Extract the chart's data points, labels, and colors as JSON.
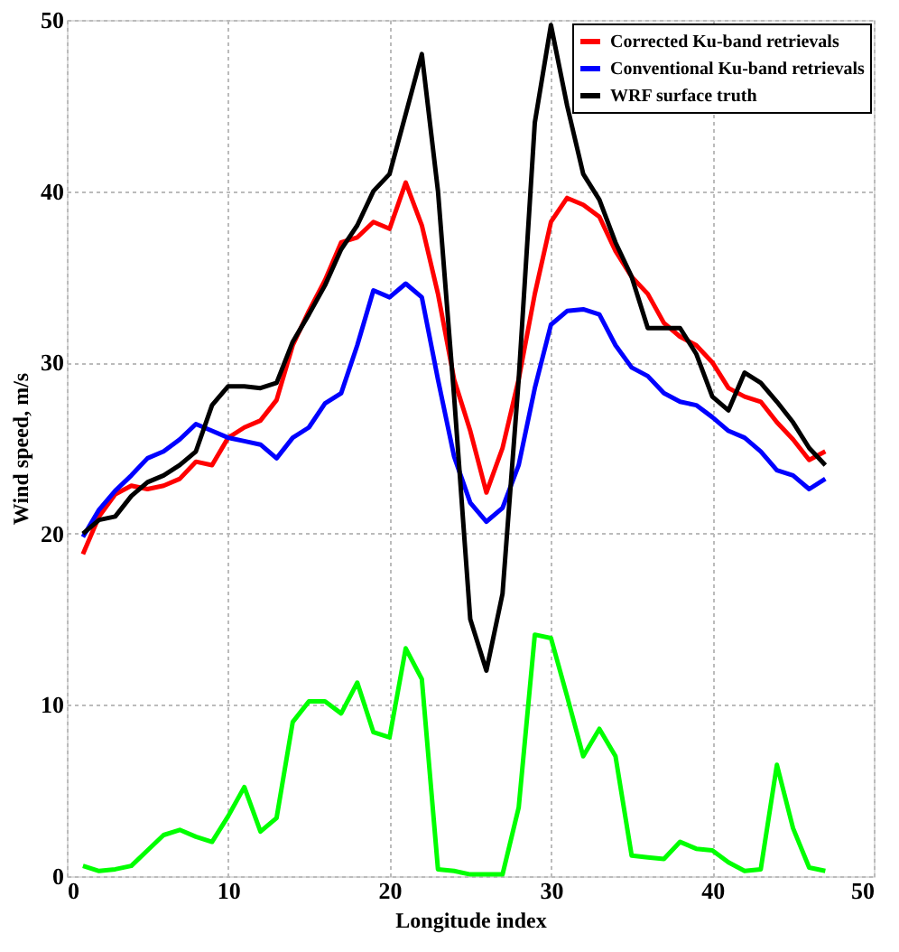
{
  "chart_data": {
    "type": "line",
    "xlabel": "Longitude index",
    "ylabel": "Wind speed, m/s",
    "x": [
      1,
      2,
      3,
      4,
      5,
      6,
      7,
      8,
      9,
      10,
      11,
      12,
      13,
      14,
      15,
      16,
      17,
      18,
      19,
      20,
      21,
      22,
      23,
      24,
      25,
      26,
      27,
      28,
      29,
      30,
      31,
      32,
      33,
      34,
      35,
      36,
      37,
      38,
      39,
      40,
      41,
      42,
      43,
      44,
      45,
      46,
      47
    ],
    "series": [
      {
        "name": "Corrected Ku-band retrievals",
        "color": "#ff0000",
        "values": [
          18.8,
          21,
          22.3,
          22.8,
          22.6,
          22.8,
          23.2,
          24.2,
          24,
          25.6,
          26.2,
          26.6,
          27.8,
          31,
          33,
          34.8,
          37,
          37.3,
          38.2,
          37.8,
          40.5,
          38,
          34,
          29,
          26,
          22.4,
          25,
          29,
          34,
          38.2,
          39.6,
          39.2,
          38.5,
          36.5,
          35,
          34,
          32.3,
          31.5,
          31,
          30,
          28.5,
          28,
          27.7,
          26.5,
          25.5,
          24.3,
          24.8
        ]
      },
      {
        "name": "Conventional Ku-band retrievals",
        "color": "#0000ff",
        "values": [
          19.8,
          21.4,
          22.5,
          23.4,
          24.4,
          24.8,
          25.5,
          26.4,
          26,
          25.6,
          25.4,
          25.2,
          24.4,
          25.6,
          26.2,
          27.6,
          28.2,
          31,
          34.2,
          33.8,
          34.6,
          33.8,
          29,
          24.5,
          21.8,
          20.7,
          21.5,
          24,
          28.5,
          32.2,
          33,
          33.1,
          32.8,
          31,
          29.7,
          29.2,
          28.2,
          27.7,
          27.5,
          26.8,
          26,
          25.6,
          24.8,
          23.7,
          23.4,
          22.6,
          23.2
        ]
      },
      {
        "name": "WRF surface truth",
        "color": "#000000",
        "values": [
          20,
          20.8,
          21,
          22.2,
          23,
          23.4,
          24,
          24.8,
          27.5,
          28.6,
          28.6,
          28.5,
          28.8,
          31.2,
          32.8,
          34.5,
          36.6,
          38,
          40,
          41,
          44.5,
          48,
          40,
          28,
          15,
          12,
          16.5,
          29,
          44,
          49.7,
          45,
          41,
          39.5,
          37,
          35,
          32,
          32,
          32,
          30.5,
          28,
          27.2,
          29.4,
          28.8,
          27.7,
          26.5,
          25,
          24
        ]
      },
      {
        "color": "#00ff00",
        "values": [
          0.6,
          0.3,
          0.4,
          0.6,
          1.5,
          2.4,
          2.7,
          2.3,
          2,
          3.5,
          5.2,
          2.6,
          3.4,
          9,
          10.2,
          10.2,
          9.5,
          11.3,
          8.4,
          8.1,
          13.3,
          11.5,
          0.4,
          0.3,
          0.1,
          0.1,
          0.1,
          4,
          14.1,
          13.9,
          10.5,
          7,
          8.6,
          7,
          1.2,
          1.1,
          1,
          2,
          1.6,
          1.5,
          0.8,
          0.3,
          0.4,
          6.5,
          2.8,
          0.5,
          0.3
        ]
      }
    ],
    "xlim": [
      0,
      50
    ],
    "xticks": [
      0,
      10,
      20,
      30,
      40,
      50
    ],
    "ylim": [
      0,
      50
    ],
    "yticks": [
      0,
      10,
      20,
      30,
      40,
      50
    ],
    "grid": true,
    "legend": "top right",
    "marker": "none",
    "line_style": "solid"
  }
}
